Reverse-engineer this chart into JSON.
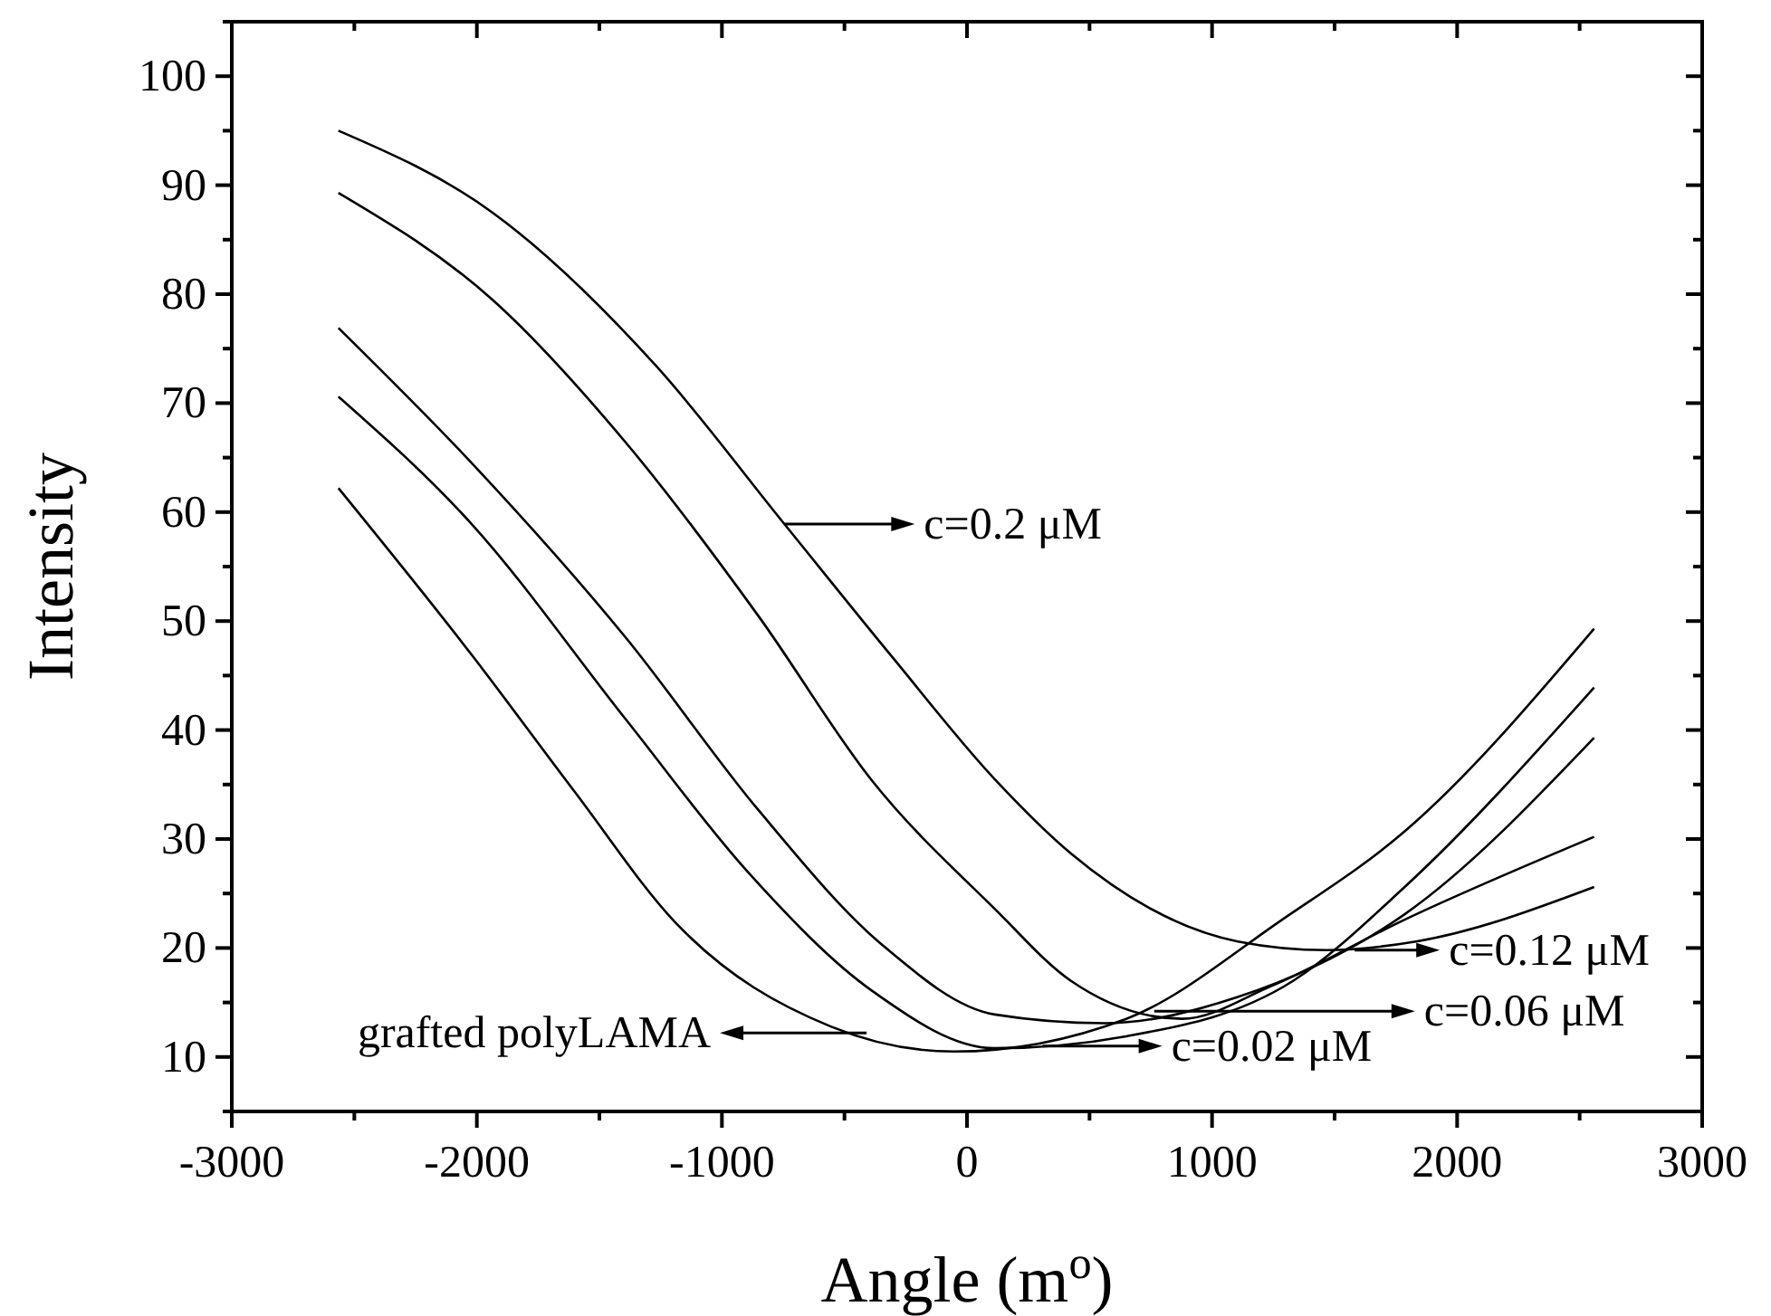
{
  "chart_data": {
    "type": "line",
    "xlabel": "Angle (m$^{o}$)",
    "ylabel": "Intensity",
    "xlim": [
      -3000,
      3000
    ],
    "ylim": [
      5,
      105
    ],
    "xticks": [
      -3000,
      {
        "value": -2500,
        "label": null
      },
      -2000,
      {
        "value": -1500,
        "label": null
      },
      -1000,
      {
        "value": -500,
        "label": null
      },
      0,
      {
        "value": 500,
        "label": null
      },
      1000,
      {
        "value": 1500,
        "label": null
      },
      2000,
      {
        "value": 2500,
        "label": null
      },
      3000
    ],
    "yticks": [
      {
        "value": 5,
        "label": null
      },
      10,
      {
        "value": 15,
        "label": null
      },
      20,
      {
        "value": 25,
        "label": null
      },
      30,
      {
        "value": 35,
        "label": null
      },
      40,
      {
        "value": 45,
        "label": null
      },
      50,
      {
        "value": 55,
        "label": null
      },
      60,
      {
        "value": 65,
        "label": null
      },
      70,
      {
        "value": 75,
        "label": null
      },
      80,
      {
        "value": 85,
        "label": null
      },
      90,
      {
        "value": 95,
        "label": null
      },
      100,
      {
        "value": 105,
        "label": null
      }
    ],
    "grid": false,
    "marker": "none",
    "line_style": "solid",
    "series": [
      {
        "color": "#000000",
        "x": [
          -2565,
          -1937,
          -1268,
          -745,
          -305,
          113,
          423,
          1105,
          1468,
          1832,
          2559
        ],
        "values": [
          95,
          87.5,
          73.4,
          58.9,
          46.7,
          35.5,
          28.7,
          20.6,
          19.8,
          20.6,
          25.6
        ]
      },
      {
        "color": "#000000",
        "x": [
          -2565,
          -1937,
          -1393,
          -849,
          -389,
          113,
          423,
          877,
          1241,
          1786,
          2559
        ],
        "values": [
          89.3,
          79.5,
          66.4,
          50.4,
          35.4,
          23.6,
          17,
          13.5,
          16.5,
          22.6,
          30.2
        ]
      },
      {
        "color": "#000000",
        "x": [
          -2565,
          -2021,
          -1393,
          -849,
          -347,
          113,
          559,
          1105,
          1786,
          2559
        ],
        "values": [
          76.9,
          64.5,
          48.5,
          32.6,
          20.3,
          13.9,
          13.1,
          15.5,
          23.1,
          39.3
        ]
      },
      {
        "color": "#000000",
        "x": [
          -2565,
          -2021,
          -1393,
          -891,
          -389,
          113,
          650,
          1332,
          1786,
          2559
        ],
        "values": [
          70.6,
          58.9,
          41,
          26.9,
          16.1,
          10.8,
          11.9,
          17,
          25.6,
          43.9
        ]
      },
      {
        "color": "#000000",
        "x": [
          -2565,
          -2021,
          -1603,
          -1184,
          -556,
          -54,
          650,
          1286,
          1786,
          2559
        ],
        "values": [
          62.2,
          46.9,
          34.4,
          22.2,
          12.8,
          10.5,
          13.5,
          22.6,
          30.7,
          49.3
        ]
      }
    ],
    "annotations": [
      "c=0.2 μM",
      {
        "text": "c=0.12 μM",
        "x": 1582,
        "y": 19.8
      },
      {
        "text": "c=0.06 μM",
        "x": 764,
        "y": 14.2
      },
      {
        "text": "c=0.02 μM",
        "x": 309,
        "y": 11
      },
      "grafted polyLAMA"
    ]
  }
}
